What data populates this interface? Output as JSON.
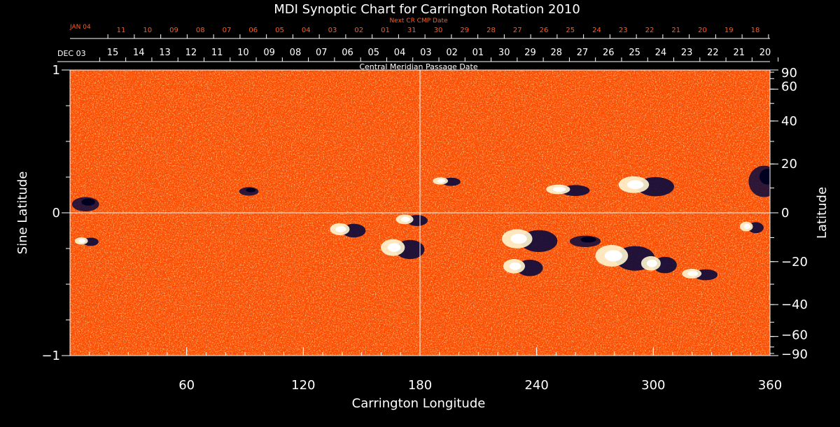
{
  "chart_data": {
    "type": "heatmap",
    "title": "MDI Synoptic Chart for Carrington Rotation 2010",
    "xlabel": "Carrington Longitude",
    "ylabel_left": "Sine Latitude",
    "ylabel_right": "Latitude",
    "xlim": [
      0,
      360
    ],
    "ylim": [
      -1,
      1
    ],
    "x_ticks": [
      60,
      120,
      180,
      240,
      300,
      360
    ],
    "y_ticks_left": [
      {
        "v": 1,
        "label": "1"
      },
      {
        "v": 0,
        "label": "0"
      },
      {
        "v": -1,
        "label": "−1"
      }
    ],
    "y_ticks_right": [
      {
        "deg": 90,
        "label": "90"
      },
      {
        "deg": 60,
        "label": "60"
      },
      {
        "deg": 40,
        "label": "40"
      },
      {
        "deg": 20,
        "label": "20"
      },
      {
        "deg": 0,
        "label": "0"
      },
      {
        "deg": -20,
        "label": "−20"
      },
      {
        "deg": -40,
        "label": "−40"
      },
      {
        "deg": -60,
        "label": "−60"
      },
      {
        "deg": -90,
        "label": "−90"
      }
    ],
    "top_axis_label": "Central Meridian Passage Date",
    "top_axis_start_label": "DEC 03",
    "top_axis_dates": [
      "15",
      "14",
      "13",
      "12",
      "11",
      "10",
      "09",
      "08",
      "07",
      "06",
      "05",
      "04",
      "03",
      "02",
      "01",
      "30",
      "29",
      "28",
      "27",
      "26",
      "25",
      "24",
      "23",
      "22",
      "21",
      "20"
    ],
    "next_axis_label": "Next CR CMP Date",
    "next_axis_start_label": "JAN 04",
    "next_axis_dates": [
      "11",
      "10",
      "09",
      "08",
      "07",
      "06",
      "05",
      "04",
      "03",
      "02",
      "01",
      "31",
      "30",
      "29",
      "28",
      "27",
      "26",
      "25",
      "24",
      "23",
      "22",
      "21",
      "20",
      "19",
      "18"
    ],
    "background_color": "#ff4d00",
    "positive_polarity_color": "#ffffff",
    "negative_polarity_color": "#0a0a3c",
    "grid_color": "#ffffff",
    "regions": [
      {
        "lon": 193,
        "slat": 0.22,
        "w": 14,
        "h": 0.06,
        "type": "bipole"
      },
      {
        "lon": 255,
        "slat": 0.16,
        "w": 22,
        "h": 0.08,
        "type": "bipole"
      },
      {
        "lon": 295,
        "slat": 0.19,
        "w": 28,
        "h": 0.14,
        "type": "bipole"
      },
      {
        "lon": 357,
        "slat": 0.22,
        "w": 16,
        "h": 0.22,
        "type": "negative"
      },
      {
        "lon": 8,
        "slat": 0.06,
        "w": 14,
        "h": 0.1,
        "type": "negative"
      },
      {
        "lon": 92,
        "slat": 0.15,
        "w": 10,
        "h": 0.06,
        "type": "negative"
      },
      {
        "lon": 142,
        "slat": -0.12,
        "w": 18,
        "h": 0.1,
        "type": "bipole"
      },
      {
        "lon": 170,
        "slat": -0.25,
        "w": 22,
        "h": 0.14,
        "type": "bipole"
      },
      {
        "lon": 175,
        "slat": -0.05,
        "w": 16,
        "h": 0.08,
        "type": "bipole"
      },
      {
        "lon": 8,
        "slat": -0.2,
        "w": 12,
        "h": 0.06,
        "type": "bipole"
      },
      {
        "lon": 235,
        "slat": -0.19,
        "w": 28,
        "h": 0.16,
        "type": "bipole"
      },
      {
        "lon": 232,
        "slat": -0.38,
        "w": 20,
        "h": 0.12,
        "type": "bipole"
      },
      {
        "lon": 265,
        "slat": -0.2,
        "w": 16,
        "h": 0.08,
        "type": "negative"
      },
      {
        "lon": 284,
        "slat": -0.31,
        "w": 30,
        "h": 0.18,
        "type": "bipole"
      },
      {
        "lon": 302,
        "slat": -0.36,
        "w": 18,
        "h": 0.12,
        "type": "bipole"
      },
      {
        "lon": 323,
        "slat": -0.43,
        "w": 18,
        "h": 0.08,
        "type": "bipole"
      },
      {
        "lon": 350,
        "slat": -0.1,
        "w": 12,
        "h": 0.08,
        "type": "bipole"
      }
    ]
  }
}
